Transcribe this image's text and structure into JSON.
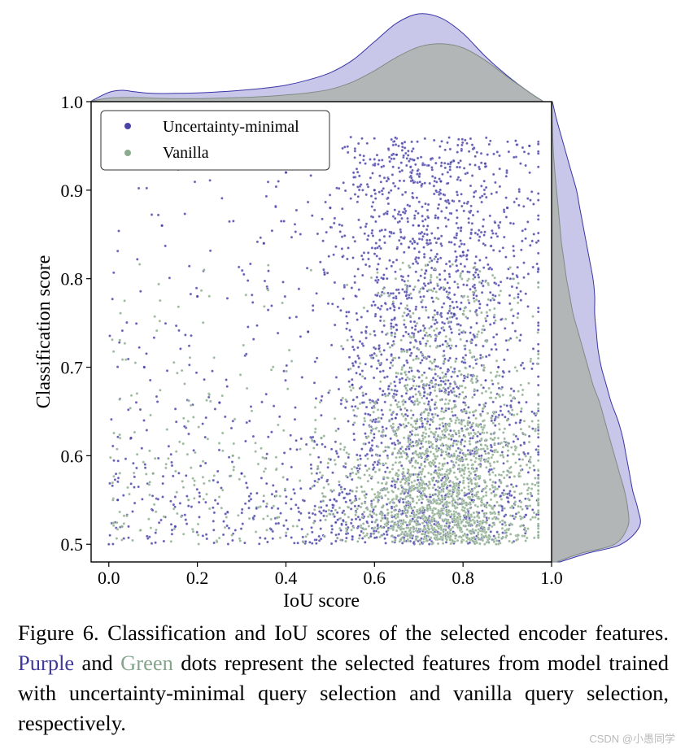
{
  "chart_data": {
    "type": "scatter",
    "title": "",
    "xlabel": "IoU score",
    "ylabel": "Classification score",
    "xlim": [
      -0.04,
      1.0
    ],
    "ylim": [
      0.48,
      1.0
    ],
    "xticks": [
      0.0,
      0.2,
      0.4,
      0.6,
      0.8,
      1.0
    ],
    "xtick_labels": [
      "0.0",
      "0.2",
      "0.4",
      "0.6",
      "0.8",
      "1.0"
    ],
    "yticks": [
      0.5,
      0.6,
      0.7,
      0.8,
      0.9,
      1.0
    ],
    "ytick_labels": [
      "0.5",
      "0.6",
      "0.7",
      "0.8",
      "0.9",
      "1.0"
    ],
    "legend_position": "top-left",
    "series": [
      {
        "name": "Uncertainty-minimal",
        "color": "#4b45b0",
        "marker_color": "#4a44a8",
        "points_x": [
          0.02,
          0.05,
          0.08,
          0.12,
          0.15,
          0.2,
          0.25,
          0.3,
          0.35,
          0.4,
          0.45,
          0.5,
          0.55,
          0.6,
          0.62,
          0.65,
          0.68,
          0.7,
          0.72,
          0.75,
          0.78,
          0.8,
          0.82,
          0.85,
          0.88,
          0.9,
          0.93,
          0.95
        ],
        "points_y": [
          0.55,
          0.62,
          0.7,
          0.86,
          0.52,
          0.78,
          0.66,
          0.58,
          0.84,
          0.92,
          0.74,
          0.88,
          0.68,
          0.9,
          0.8,
          0.94,
          0.72,
          0.86,
          0.6,
          0.91,
          0.76,
          0.83,
          0.55,
          0.93,
          0.7,
          0.88,
          0.64,
          0.95
        ],
        "marginal_x_density": {
          "x": [
            -0.04,
            0.0,
            0.03,
            0.06,
            0.1,
            0.15,
            0.2,
            0.25,
            0.3,
            0.35,
            0.4,
            0.45,
            0.5,
            0.55,
            0.6,
            0.65,
            0.7,
            0.75,
            0.8,
            0.85,
            0.9,
            0.95,
            0.98
          ],
          "density": [
            0.05,
            0.9,
            1.1,
            0.95,
            0.8,
            0.8,
            0.85,
            0.95,
            1.1,
            1.3,
            1.6,
            2.1,
            2.8,
            4.0,
            5.8,
            7.6,
            8.5,
            8.1,
            6.6,
            4.4,
            2.5,
            0.9,
            0.05
          ]
        },
        "marginal_y_density": {
          "y": [
            0.48,
            0.49,
            0.5,
            0.52,
            0.54,
            0.56,
            0.58,
            0.6,
            0.62,
            0.64,
            0.66,
            0.68,
            0.7,
            0.72,
            0.74,
            0.76,
            0.78,
            0.8,
            0.82,
            0.84,
            0.86,
            0.88,
            0.9,
            0.92,
            0.94,
            0.96,
            0.98,
            1.0
          ],
          "density": [
            0.5,
            2.2,
            4.2,
            5.3,
            5.2,
            4.9,
            4.7,
            4.5,
            4.3,
            4.0,
            3.6,
            3.3,
            3.0,
            2.8,
            2.7,
            2.6,
            2.6,
            2.5,
            2.3,
            2.1,
            1.9,
            1.7,
            1.5,
            1.2,
            0.9,
            0.6,
            0.3,
            0.05
          ]
        }
      },
      {
        "name": "Vanilla",
        "color": "#8bac8c",
        "marker_color": "#8bac8c",
        "points_x": [
          0.03,
          0.1,
          0.18,
          0.28,
          0.38,
          0.48,
          0.55,
          0.6,
          0.65,
          0.7,
          0.72,
          0.75,
          0.78,
          0.8,
          0.85,
          0.9,
          0.95
        ],
        "points_y": [
          0.52,
          0.58,
          0.55,
          0.6,
          0.53,
          0.62,
          0.56,
          0.66,
          0.58,
          0.72,
          0.54,
          0.68,
          0.6,
          0.76,
          0.57,
          0.64,
          0.55
        ],
        "marginal_x_density": {
          "x": [
            -0.04,
            0.0,
            0.05,
            0.1,
            0.15,
            0.2,
            0.25,
            0.3,
            0.35,
            0.4,
            0.45,
            0.5,
            0.55,
            0.6,
            0.65,
            0.7,
            0.75,
            0.8,
            0.85,
            0.9,
            0.95,
            0.98
          ],
          "density": [
            0.05,
            0.35,
            0.4,
            0.35,
            0.3,
            0.3,
            0.35,
            0.4,
            0.5,
            0.65,
            0.85,
            1.2,
            1.9,
            3.0,
            4.3,
            5.3,
            5.6,
            5.2,
            4.0,
            2.4,
            0.9,
            0.05
          ]
        },
        "marginal_y_density": {
          "y": [
            0.48,
            0.49,
            0.5,
            0.52,
            0.54,
            0.56,
            0.58,
            0.6,
            0.62,
            0.64,
            0.66,
            0.68,
            0.7,
            0.72,
            0.74,
            0.76,
            0.78,
            0.8,
            0.82,
            0.84,
            0.86,
            0.88,
            0.9,
            0.92,
            0.94,
            0.96,
            0.98,
            1.0
          ],
          "density": [
            0.3,
            1.8,
            3.8,
            4.6,
            4.6,
            4.4,
            4.1,
            3.8,
            3.5,
            3.2,
            2.9,
            2.5,
            2.2,
            1.9,
            1.6,
            1.3,
            1.1,
            0.9,
            0.75,
            0.6,
            0.5,
            0.4,
            0.3,
            0.2,
            0.12,
            0.07,
            0.04,
            0.02
          ]
        }
      }
    ]
  },
  "caption": {
    "prefix": "Figure 6.  Classification and IoU scores of the selected encoder features. ",
    "purple_word": "Purple",
    "middle": " and ",
    "green_word": "Green",
    "suffix": " dots represent the selected features from model trained with uncertainty-minimal query selection and vanilla query selection, respectively."
  },
  "watermark": "CSDN @小愚同学",
  "colors": {
    "purple_fill": "#bcb9e3",
    "purple_edge": "#3a35a6",
    "green_fill": "#a7ad9c",
    "green_edge": "#7e8c84"
  }
}
